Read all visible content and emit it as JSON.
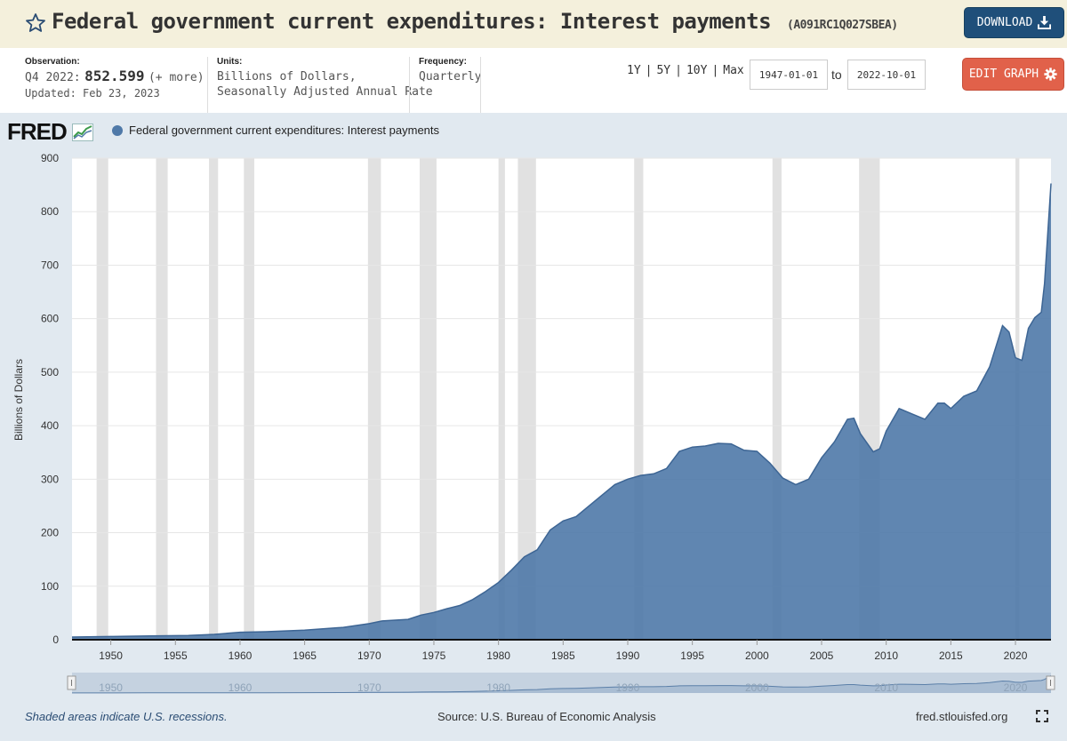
{
  "header": {
    "title": "Federal government current expenditures: Interest payments",
    "series_id": "(A091RC1Q027SBEA)",
    "download_label": "DOWNLOAD",
    "icons": {
      "favorite": "star-icon",
      "download": "download-icon"
    }
  },
  "meta": {
    "observation_label": "Observation:",
    "observation_period": "Q4 2022:",
    "observation_value": "852.599",
    "observation_more": "(+ more)",
    "updated": "Updated: Feb 23, 2023",
    "units_label": "Units:",
    "units_line1": "Billions of Dollars,",
    "units_line2": "Seasonally Adjusted Annual Rate",
    "frequency_label": "Frequency:",
    "frequency_value": "Quarterly"
  },
  "controls": {
    "range_1y": "1Y",
    "range_5y": "5Y",
    "range_10y": "10Y",
    "range_max": "Max",
    "separator": "|",
    "start_date": "1947-01-01",
    "to_label": "to",
    "end_date": "2022-10-01",
    "edit_label": "EDIT GRAPH",
    "icons": {
      "edit": "gear-icon"
    }
  },
  "logo": "FRED",
  "colors": {
    "series": "#4f79a8",
    "series_line": "#3d6594",
    "recession": "#e1e1e1",
    "accent_download": "#1f4f7a",
    "accent_edit": "#e1614a"
  },
  "chart_data": {
    "type": "area",
    "title": "Federal government current expenditures: Interest payments",
    "ylabel": "Billions of Dollars",
    "xlabel": "",
    "xlim": [
      1947.0,
      2022.75
    ],
    "ylim": [
      0,
      900
    ],
    "yticks": [
      0,
      100,
      200,
      300,
      400,
      500,
      600,
      700,
      800,
      900
    ],
    "xticks": [
      1950,
      1955,
      1960,
      1965,
      1970,
      1975,
      1980,
      1985,
      1990,
      1995,
      2000,
      2005,
      2010,
      2015,
      2020
    ],
    "navigator_ticks": [
      "1950",
      "1960",
      "1970",
      "1980",
      "1990",
      "2000",
      "2010",
      "2020"
    ],
    "grid": true,
    "legend": "top-left",
    "series": [
      {
        "name": "Federal government current expenditures: Interest payments",
        "x": [
          1947,
          1950,
          1953,
          1956,
          1958,
          1960,
          1962,
          1965,
          1968,
          1970,
          1971,
          1973,
          1974,
          1975,
          1976,
          1977,
          1978,
          1979,
          1980,
          1981,
          1982,
          1983,
          1984,
          1985,
          1986,
          1987,
          1988,
          1989,
          1990,
          1991,
          1992,
          1993,
          1994,
          1995,
          1996,
          1997,
          1998,
          1999,
          2000,
          2001,
          2002,
          2003,
          2004,
          2005,
          2006,
          2007,
          2007.5,
          2008,
          2009,
          2009.5,
          2010,
          2011,
          2012,
          2013,
          2014,
          2014.5,
          2015,
          2016,
          2017,
          2018,
          2019,
          2019.5,
          2020,
          2020.5,
          2021,
          2021.5,
          2022,
          2022.25,
          2022.5,
          2022.75
        ],
        "y": [
          5,
          6,
          7,
          8,
          10,
          14,
          15,
          18,
          23,
          30,
          35,
          38,
          46,
          51,
          58,
          64,
          75,
          90,
          107,
          130,
          155,
          168,
          205,
          222,
          230,
          250,
          270,
          290,
          300,
          307,
          310,
          320,
          352,
          360,
          362,
          367,
          366,
          354,
          352,
          330,
          302,
          290,
          300,
          340,
          370,
          412,
          414,
          385,
          351,
          357,
          390,
          432,
          422,
          412,
          442,
          442,
          432,
          455,
          465,
          510,
          587,
          575,
          527,
          522,
          582,
          602,
          612,
          665,
          760,
          852.599
        ]
      }
    ],
    "recessions": [
      [
        1948.9,
        1949.8
      ],
      [
        1953.5,
        1954.4
      ],
      [
        1957.6,
        1958.3
      ],
      [
        1960.3,
        1961.1
      ],
      [
        1969.9,
        1970.9
      ],
      [
        1973.9,
        1975.2
      ],
      [
        1980.0,
        1980.5
      ],
      [
        1981.5,
        1982.9
      ],
      [
        1990.5,
        1991.2
      ],
      [
        2001.2,
        2001.9
      ],
      [
        2007.9,
        2009.5
      ],
      [
        2020.0,
        2020.3
      ]
    ]
  },
  "footer": {
    "recession_note": "Shaded areas indicate U.S. recessions.",
    "source": "Source: U.S. Bureau of Economic Analysis",
    "site": "fred.stlouisfed.org",
    "icons": {
      "fullscreen": "fullscreen-icon"
    }
  }
}
